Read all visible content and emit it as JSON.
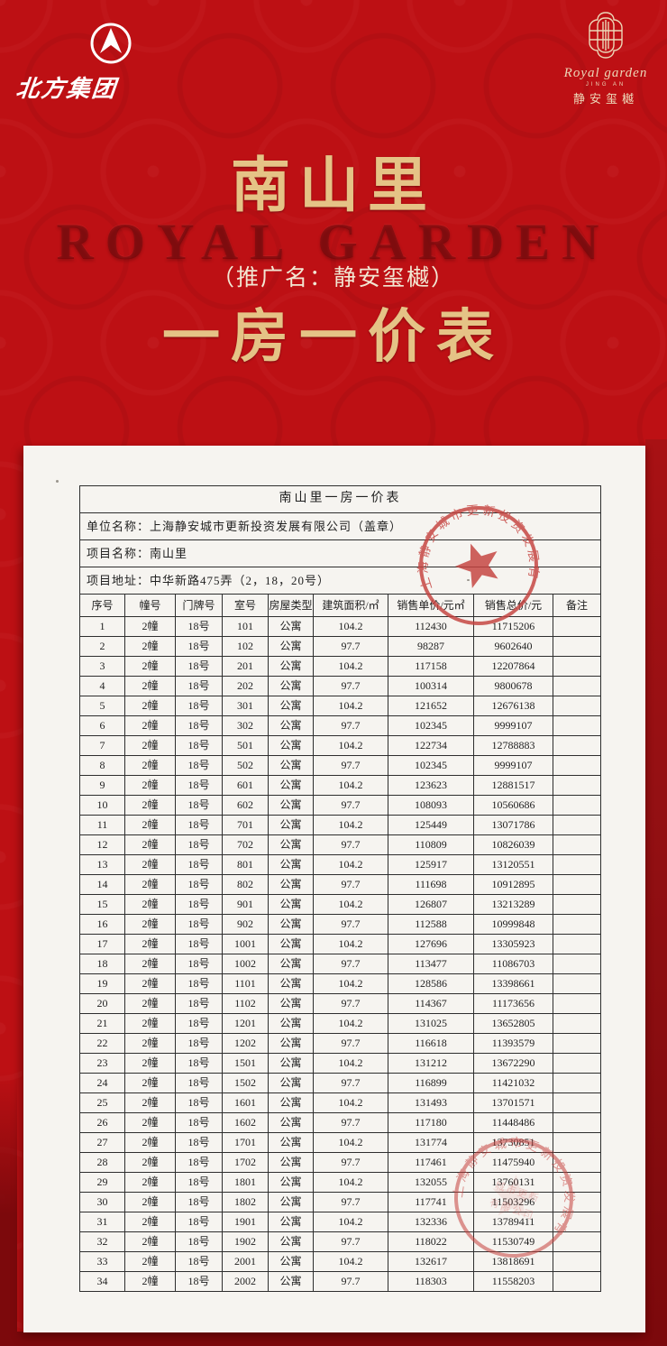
{
  "banner": {
    "title": "南山里",
    "watermark": "ROYAL GARDEN",
    "promo_line": "（推广名：静安玺樾）",
    "subtitle": "一房一价表",
    "left_logo_text": "北方集团",
    "right_logo_script": "Royal garden",
    "right_logo_tiny": "JING AN",
    "right_logo_sub": "静安玺樾"
  },
  "document": {
    "table_title": "南山里一房一价表",
    "info_rows": [
      "单位名称：上海静安城市更新投资发展有限公司（盖章）",
      "项目名称：南山里",
      "项目地址：中华新路475弄（2，18，20号）"
    ],
    "columns": [
      "序号",
      "幢号",
      "门牌号",
      "室号",
      "房屋类型",
      "建筑面积/㎡",
      "销售单价/元㎡",
      "销售总价/元",
      "备注"
    ],
    "rows": [
      [
        "1",
        "2幢",
        "18号",
        "101",
        "公寓",
        "104.2",
        "112430",
        "11715206",
        ""
      ],
      [
        "2",
        "2幢",
        "18号",
        "102",
        "公寓",
        "97.7",
        "98287",
        "9602640",
        ""
      ],
      [
        "3",
        "2幢",
        "18号",
        "201",
        "公寓",
        "104.2",
        "117158",
        "12207864",
        ""
      ],
      [
        "4",
        "2幢",
        "18号",
        "202",
        "公寓",
        "97.7",
        "100314",
        "9800678",
        ""
      ],
      [
        "5",
        "2幢",
        "18号",
        "301",
        "公寓",
        "104.2",
        "121652",
        "12676138",
        ""
      ],
      [
        "6",
        "2幢",
        "18号",
        "302",
        "公寓",
        "97.7",
        "102345",
        "9999107",
        ""
      ],
      [
        "7",
        "2幢",
        "18号",
        "501",
        "公寓",
        "104.2",
        "122734",
        "12788883",
        ""
      ],
      [
        "8",
        "2幢",
        "18号",
        "502",
        "公寓",
        "97.7",
        "102345",
        "9999107",
        ""
      ],
      [
        "9",
        "2幢",
        "18号",
        "601",
        "公寓",
        "104.2",
        "123623",
        "12881517",
        ""
      ],
      [
        "10",
        "2幢",
        "18号",
        "602",
        "公寓",
        "97.7",
        "108093",
        "10560686",
        ""
      ],
      [
        "11",
        "2幢",
        "18号",
        "701",
        "公寓",
        "104.2",
        "125449",
        "13071786",
        ""
      ],
      [
        "12",
        "2幢",
        "18号",
        "702",
        "公寓",
        "97.7",
        "110809",
        "10826039",
        ""
      ],
      [
        "13",
        "2幢",
        "18号",
        "801",
        "公寓",
        "104.2",
        "125917",
        "13120551",
        ""
      ],
      [
        "14",
        "2幢",
        "18号",
        "802",
        "公寓",
        "97.7",
        "111698",
        "10912895",
        ""
      ],
      [
        "15",
        "2幢",
        "18号",
        "901",
        "公寓",
        "104.2",
        "126807",
        "13213289",
        ""
      ],
      [
        "16",
        "2幢",
        "18号",
        "902",
        "公寓",
        "97.7",
        "112588",
        "10999848",
        ""
      ],
      [
        "17",
        "2幢",
        "18号",
        "1001",
        "公寓",
        "104.2",
        "127696",
        "13305923",
        ""
      ],
      [
        "18",
        "2幢",
        "18号",
        "1002",
        "公寓",
        "97.7",
        "113477",
        "11086703",
        ""
      ],
      [
        "19",
        "2幢",
        "18号",
        "1101",
        "公寓",
        "104.2",
        "128586",
        "13398661",
        ""
      ],
      [
        "20",
        "2幢",
        "18号",
        "1102",
        "公寓",
        "97.7",
        "114367",
        "11173656",
        ""
      ],
      [
        "21",
        "2幢",
        "18号",
        "1201",
        "公寓",
        "104.2",
        "131025",
        "13652805",
        ""
      ],
      [
        "22",
        "2幢",
        "18号",
        "1202",
        "公寓",
        "97.7",
        "116618",
        "11393579",
        ""
      ],
      [
        "23",
        "2幢",
        "18号",
        "1501",
        "公寓",
        "104.2",
        "131212",
        "13672290",
        ""
      ],
      [
        "24",
        "2幢",
        "18号",
        "1502",
        "公寓",
        "97.7",
        "116899",
        "11421032",
        ""
      ],
      [
        "25",
        "2幢",
        "18号",
        "1601",
        "公寓",
        "104.2",
        "131493",
        "13701571",
        ""
      ],
      [
        "26",
        "2幢",
        "18号",
        "1602",
        "公寓",
        "97.7",
        "117180",
        "11448486",
        ""
      ],
      [
        "27",
        "2幢",
        "18号",
        "1701",
        "公寓",
        "104.2",
        "131774",
        "13730851",
        ""
      ],
      [
        "28",
        "2幢",
        "18号",
        "1702",
        "公寓",
        "97.7",
        "117461",
        "11475940",
        ""
      ],
      [
        "29",
        "2幢",
        "18号",
        "1801",
        "公寓",
        "104.2",
        "132055",
        "13760131",
        ""
      ],
      [
        "30",
        "2幢",
        "18号",
        "1802",
        "公寓",
        "97.7",
        "117741",
        "11503296",
        ""
      ],
      [
        "31",
        "2幢",
        "18号",
        "1901",
        "公寓",
        "104.2",
        "132336",
        "13789411",
        ""
      ],
      [
        "32",
        "2幢",
        "18号",
        "1902",
        "公寓",
        "97.7",
        "118022",
        "11530749",
        ""
      ],
      [
        "33",
        "2幢",
        "18号",
        "2001",
        "公寓",
        "104.2",
        "132617",
        "13818691",
        ""
      ],
      [
        "34",
        "2幢",
        "18号",
        "2002",
        "公寓",
        "97.7",
        "118303",
        "11558203",
        ""
      ]
    ],
    "stamp_text": "上海静安城市更新投资发展有限公司",
    "stamp2_faint_line1": "城市更新",
    "stamp2_faint_line2": "有限公司"
  },
  "colors": {
    "background_red": "#bd1014",
    "frame_dark_red": "#7c090c",
    "gold": "#e5c386",
    "paper": "#f6f4f0",
    "seal_red": "#c5413e",
    "ink": "#222222"
  }
}
